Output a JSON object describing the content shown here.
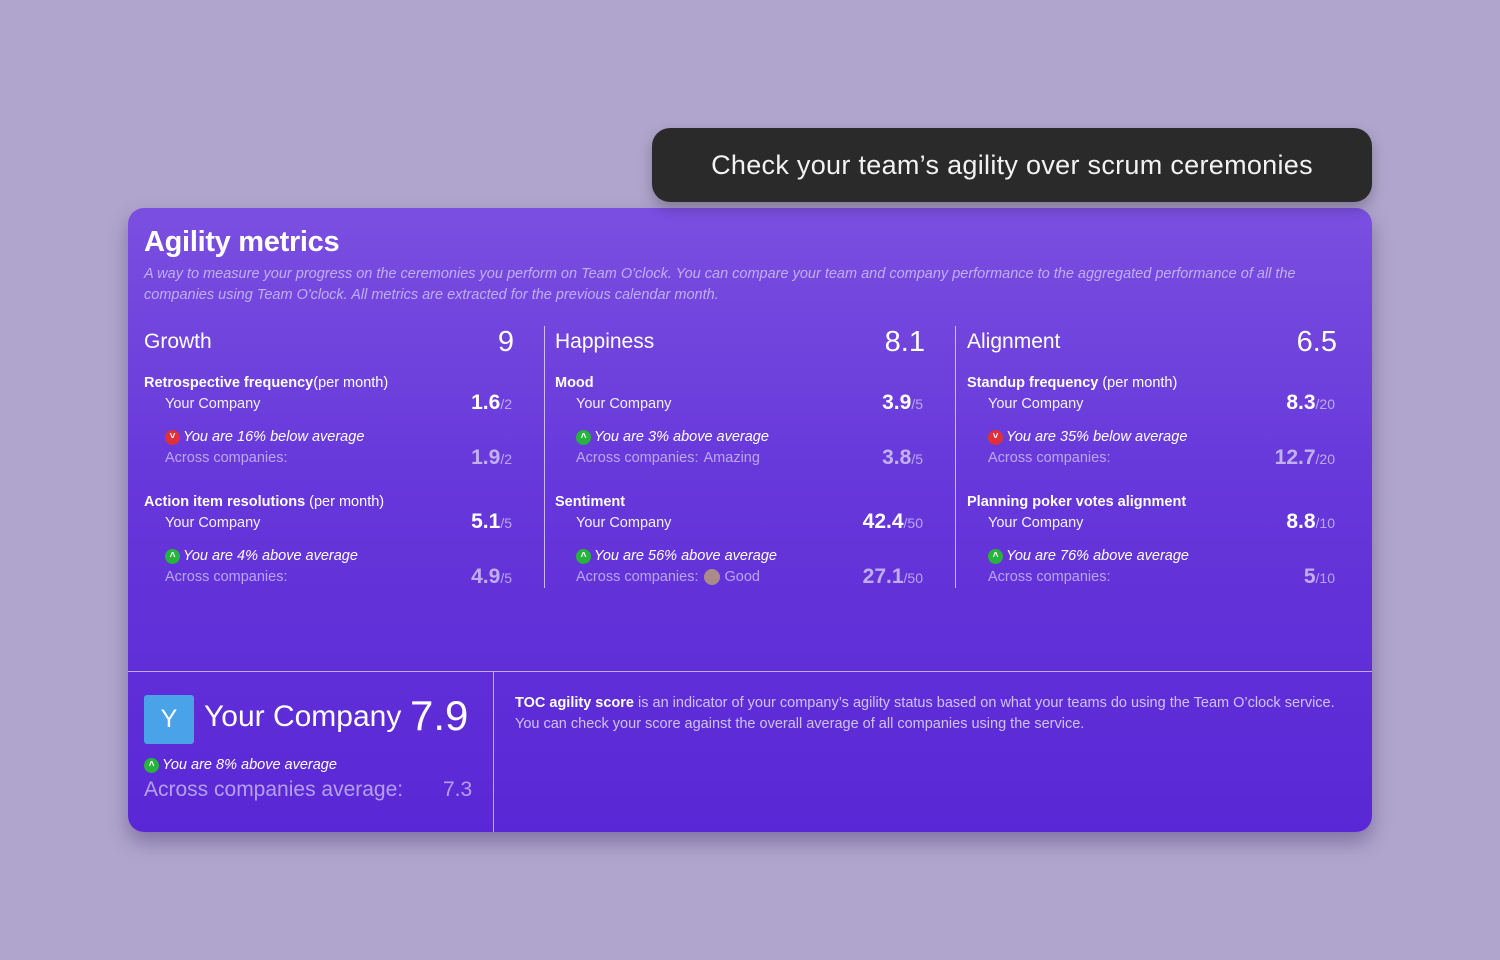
{
  "tooltip": "Check your team’s agility over scrum ceremonies",
  "card": {
    "title": "Agility metrics",
    "description": "A way to measure your progress on the ceremonies you perform on Team O'clock. You can compare your team and company performance to the aggregated performance of all the companies using Team O'clock. All metrics are extracted for the previous calendar month."
  },
  "columns": [
    {
      "name": "Growth",
      "score": "9",
      "metrics": [
        {
          "title": "Retrospective frequency",
          "unit": "(per month)",
          "your_label": "Your Company",
          "your_value": "1.6",
          "your_den": "/2",
          "trend": "down",
          "comparison": "You are 16% below average",
          "avg_label": "Across companies:",
          "avg_extra": "",
          "avg_value": "1.9",
          "avg_den": "/2"
        },
        {
          "title": "Action item resolutions",
          "unit": " (per month)",
          "your_label": "Your Company",
          "your_value": "5.1",
          "your_den": "/5",
          "trend": "up",
          "comparison": "You are 4% above average",
          "avg_label": "Across companies:",
          "avg_extra": "",
          "avg_value": "4.9",
          "avg_den": "/5"
        }
      ]
    },
    {
      "name": "Happiness",
      "score": "8.1",
      "metrics": [
        {
          "title": "Mood",
          "unit": "",
          "your_label": "Your Company",
          "your_value": "3.9",
          "your_den": "/5",
          "trend": "up",
          "comparison": "You are 3% above average",
          "avg_label": "Across companies:",
          "avg_extra": "Amazing",
          "avg_value": "3.8",
          "avg_den": "/5"
        },
        {
          "title": "Sentiment",
          "unit": "",
          "your_label": "Your Company",
          "your_value": "42.4",
          "your_den": "/50",
          "trend": "up",
          "comparison": "You are 56% above average",
          "avg_label": "Across companies:",
          "avg_extra": "Good",
          "avg_emoji": true,
          "avg_value": "27.1",
          "avg_den": "/50"
        }
      ]
    },
    {
      "name": "Alignment",
      "score": "6.5",
      "metrics": [
        {
          "title": "Standup frequency",
          "unit": " (per month)",
          "your_label": "Your Company",
          "your_value": "8.3",
          "your_den": "/20",
          "trend": "down",
          "comparison": "You are 35% below average",
          "avg_label": "Across companies:",
          "avg_extra": "",
          "avg_value": "12.7",
          "avg_den": "/20"
        },
        {
          "title": "Planning poker votes alignment",
          "unit": "",
          "your_label": "Your Company",
          "your_value": "8.8",
          "your_den": "/10",
          "trend": "up",
          "comparison": "You are 76% above average",
          "avg_label": "Across companies:",
          "avg_extra": "",
          "avg_value": "5",
          "avg_den": "/10"
        }
      ]
    }
  ],
  "summary": {
    "avatar_letter": "Y",
    "avatar_color": "#4aa3e8",
    "company_name": "Your Company",
    "score": "7.9",
    "trend": "up",
    "comparison": "You are 8% above average",
    "avg_label": "Across companies average:",
    "avg_value": "7.3"
  },
  "toc": {
    "term": "TOC agility score",
    "text": " is an indicator of your company’s agility status based on what your teams do using the Team O’clock service. You can check your score against the overall average of all companies using the service."
  },
  "icons": {
    "up": "chevron-up-icon",
    "down": "chevron-down-icon"
  }
}
